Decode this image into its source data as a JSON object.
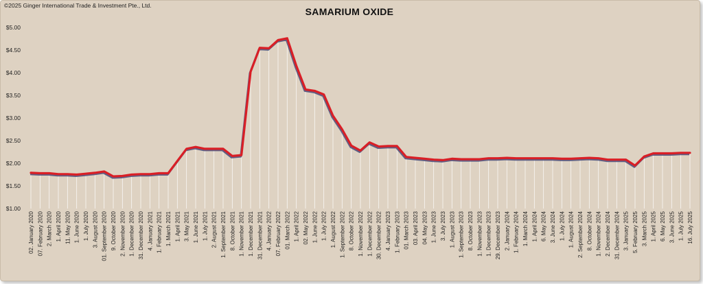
{
  "copyright": "©2025 Ginger International Trade & Investment Pte., Ltd.",
  "colors": {
    "background": "#ded2c2",
    "line": "#d91f26",
    "shadow": "#4a4a78",
    "drop": "#ffffff"
  },
  "chart_data": {
    "type": "line",
    "title": "SAMARIUM OXIDE",
    "xlabel": "",
    "ylabel": "",
    "ylim": [
      1.0,
      5.0
    ],
    "y_ticks": [
      "$1.00",
      "$1.50",
      "$2.00",
      "$2.50",
      "$3.00",
      "$3.50",
      "$4.00",
      "$4.50",
      "$5.00"
    ],
    "y_tick_values": [
      1.0,
      1.5,
      2.0,
      2.5,
      3.0,
      3.5,
      4.0,
      4.5,
      5.0
    ],
    "grid": false,
    "legend": "none",
    "categories": [
      "02. January 2020",
      "07. February 2020",
      "2. March 2020",
      "1. April 2020",
      "11. May 2020",
      "1. June 2020",
      "1. July 2020",
      "3. August 2020",
      "01. September 2020",
      "9. October 2020",
      "2. November 2020",
      "1. December 2020",
      "31. December 2020",
      "4. January 2021",
      "1. February 2021",
      "1. March 2021",
      "1. April 2021",
      "3. May 2021",
      "1. June 2021",
      "1. July 2021",
      "2. August 2021",
      "1. September 2021",
      "8. October 2021",
      "1. November 2021",
      "1. December 2021",
      "31. December 2021",
      "4. January 2022",
      "07. February 2022",
      "01. March 2022",
      "1. April 2022",
      "02. May 2022",
      "1. June 2022",
      "1. July 2022",
      "1. August 2022",
      "1. September 2022",
      "8. October 2022",
      "1. November 2022",
      "1. December 2022",
      "30. December 2022",
      "4. January 2023",
      "1. February 2023",
      "01. March 2023",
      "03. April 2023",
      "04. May 2023",
      "1. June 2023",
      "3. July 2023",
      "1. August 2023",
      "1. September 2023",
      "8. October 2023",
      "1. November 2023",
      "1. December 2023",
      "29. December 2023",
      "2. January 2024",
      "1. February 2024",
      "1. March 2024",
      "1. April 2024",
      "6. May 2024",
      "3. June 2024",
      "1. July 2024",
      "1. August 2024",
      "2. September 2024",
      "8. October 2024",
      "1. November 2024",
      "2. December 2024",
      "31. December 2024",
      "3. January 2025",
      "5. February 2025",
      "3. March 2025",
      "1. April 2025",
      "6. May 2025",
      "3. June 2025",
      "1. July 2025",
      "16. July 2025"
    ],
    "series": [
      {
        "values": [
          1.79,
          1.78,
          1.78,
          1.76,
          1.76,
          1.75,
          1.77,
          1.79,
          1.82,
          1.71,
          1.72,
          1.75,
          1.76,
          1.76,
          1.78,
          1.78,
          2.05,
          2.32,
          2.36,
          2.32,
          2.32,
          2.32,
          2.16,
          2.18,
          4.02,
          4.55,
          4.54,
          4.72,
          4.76,
          4.15,
          3.63,
          3.6,
          3.52,
          3.05,
          2.75,
          2.39,
          2.28,
          2.46,
          2.37,
          2.38,
          2.38,
          2.14,
          2.12,
          2.1,
          2.08,
          2.07,
          2.1,
          2.09,
          2.09,
          2.09,
          2.11,
          2.11,
          2.12,
          2.11,
          2.11,
          2.11,
          2.11,
          2.11,
          2.1,
          2.1,
          2.11,
          2.12,
          2.11,
          2.08,
          2.08,
          2.08,
          1.95,
          2.15,
          2.22,
          2.22,
          2.22,
          2.23,
          2.23
        ]
      }
    ]
  }
}
